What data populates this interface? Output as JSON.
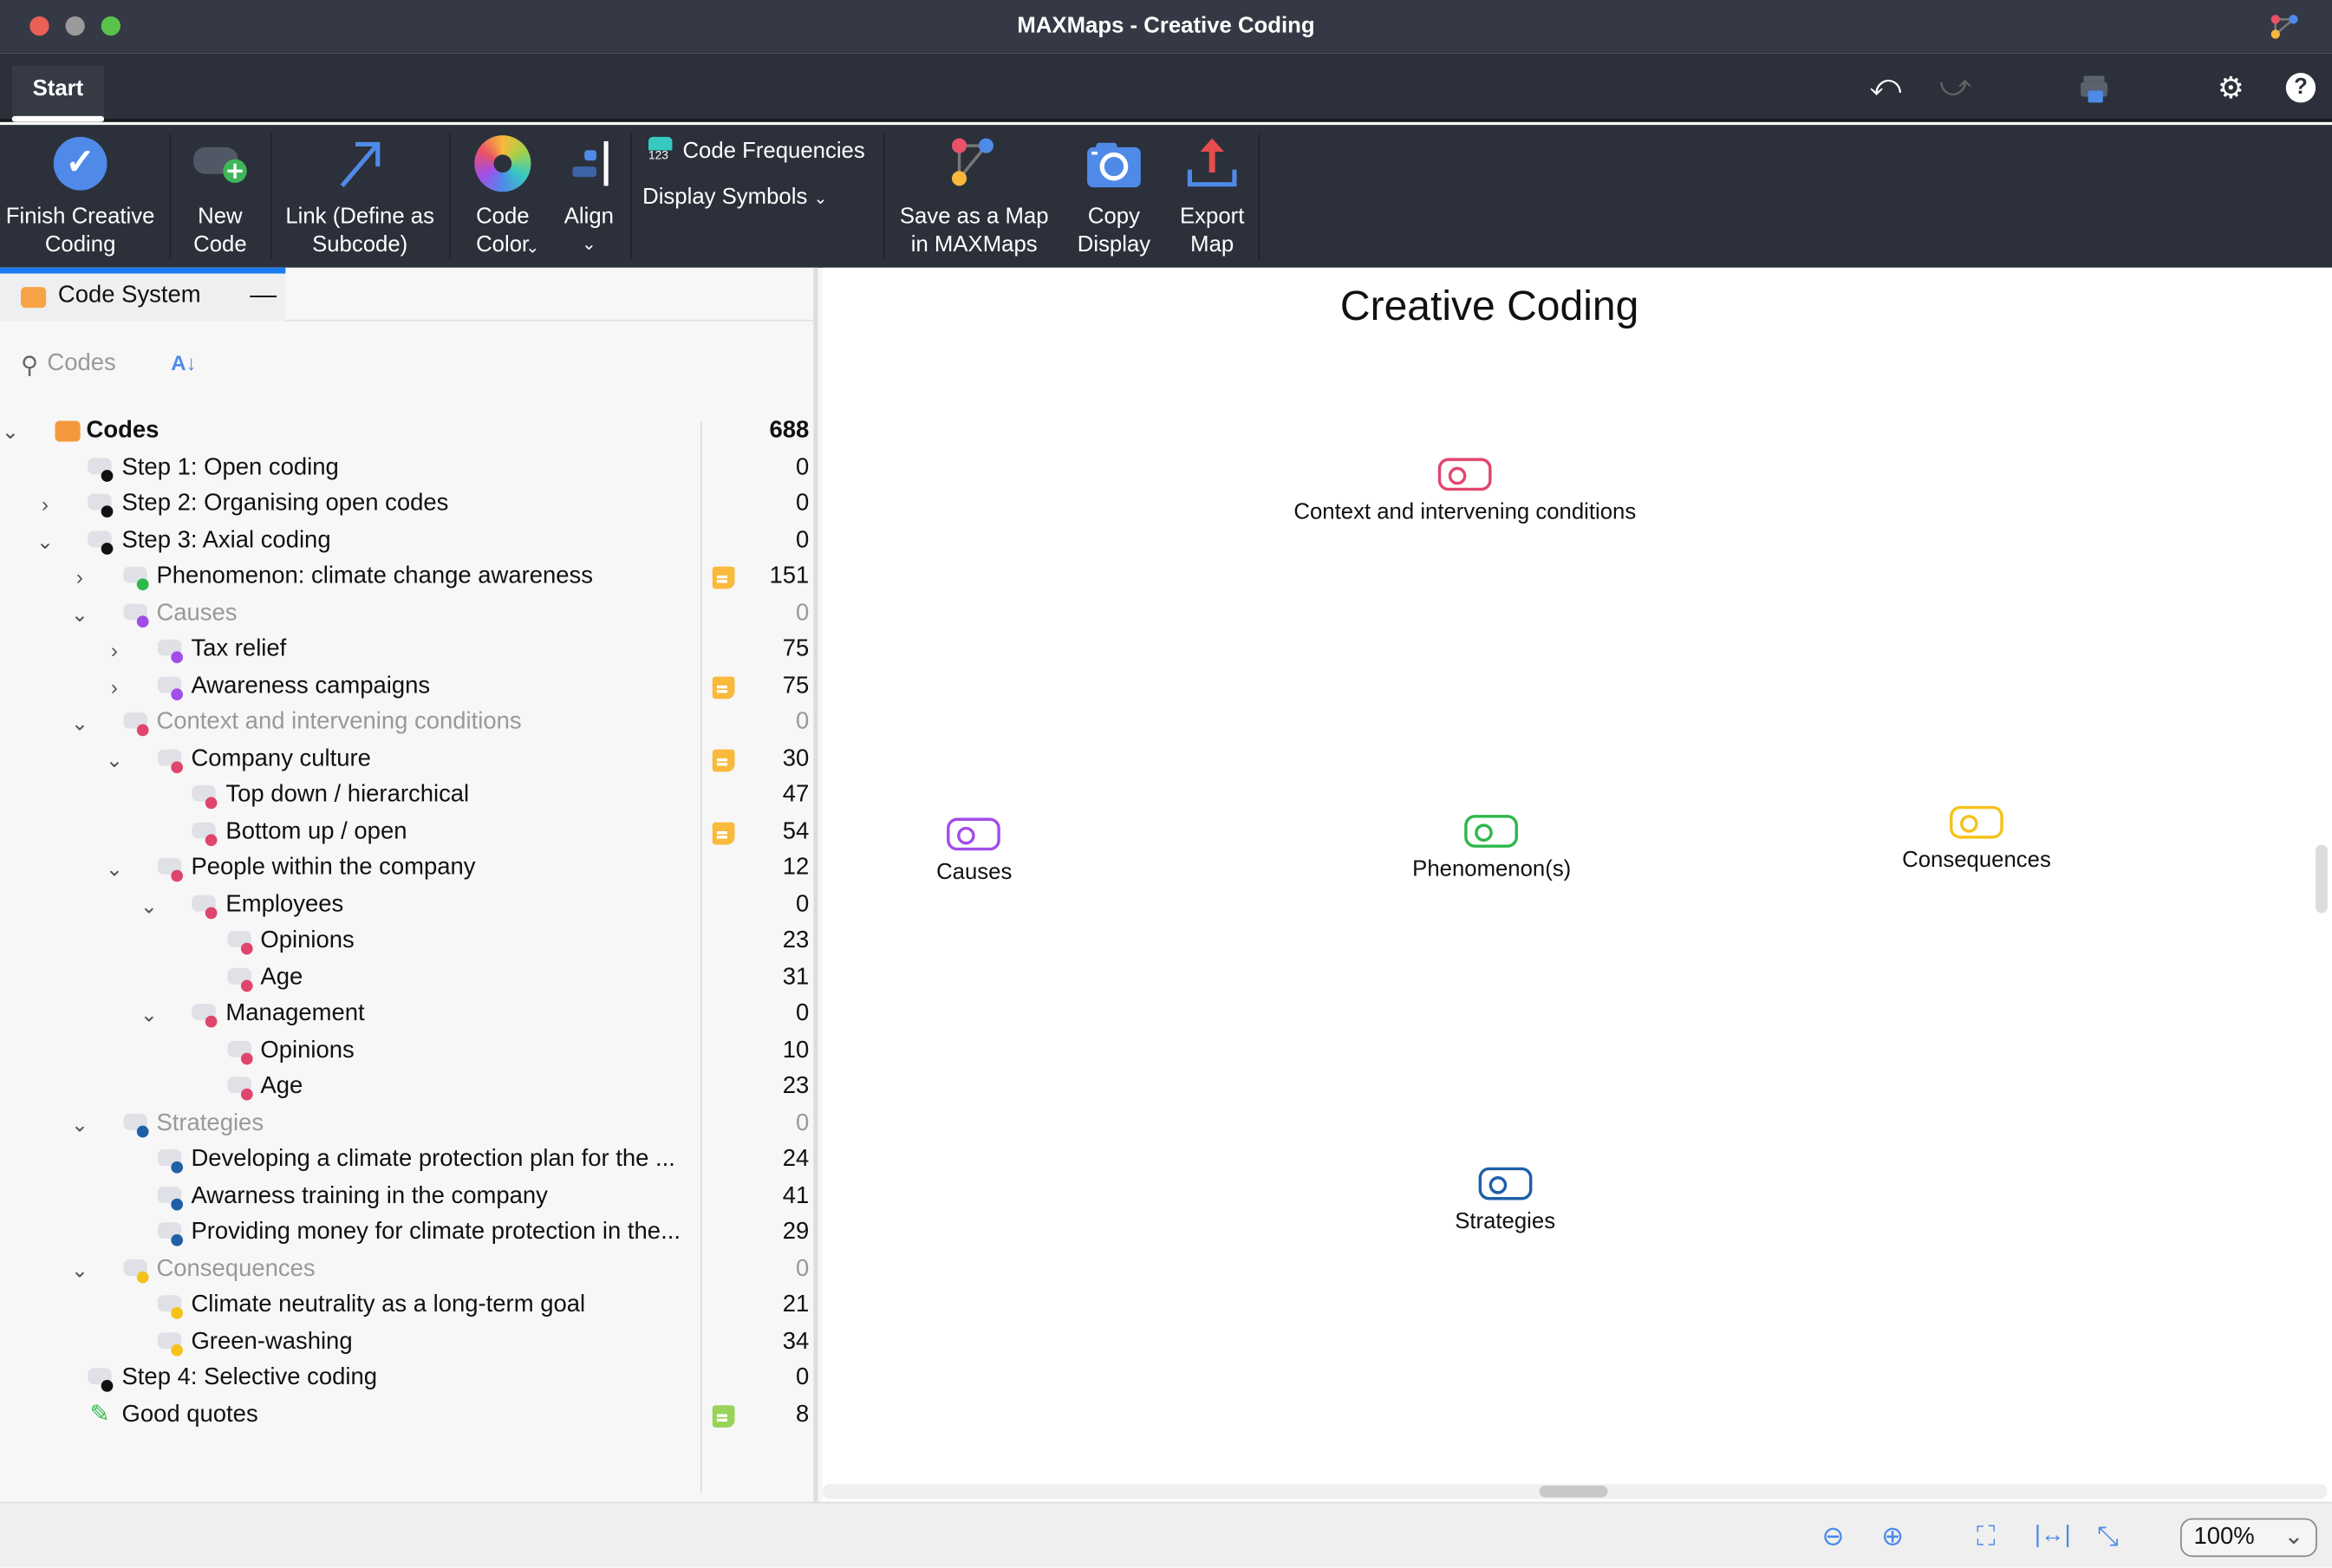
{
  "window": {
    "title": "MAXMaps - Creative Coding"
  },
  "tabs": {
    "start": "Start"
  },
  "ribbon": {
    "finish": "Finish Creative Coding",
    "new_code": "New Code",
    "link": "Link (Define as Subcode)",
    "code_color": "Code Color",
    "align": "Align",
    "code_freq": "Code Frequencies",
    "display_symbols": "Display Symbols",
    "save_map": "Save as a Map in MAXMaps",
    "copy_display": "Copy Display",
    "export_map": "Export Map"
  },
  "code_system": {
    "title": "Code System",
    "search_placeholder": "Codes",
    "rows": [
      {
        "label": "Codes",
        "level": 0,
        "expand": "open",
        "color": "#f59a3c",
        "count": "688",
        "root": true
      },
      {
        "label": "Step 1: Open coding",
        "level": 1,
        "expand": null,
        "color": "#111111",
        "count": "0"
      },
      {
        "label": "Step 2: Organising open codes",
        "level": 1,
        "expand": "closed",
        "color": "#111111",
        "count": "0"
      },
      {
        "label": "Step 3: Axial coding",
        "level": 1,
        "expand": "open",
        "color": "#111111",
        "count": "0"
      },
      {
        "label": "Phenomenon: climate change awareness",
        "level": 2,
        "expand": "closed",
        "color": "#2db84b",
        "count": "151",
        "memo": true
      },
      {
        "label": "Causes",
        "level": 2,
        "expand": "open",
        "color": "#a24de8",
        "count": "0",
        "muted": true
      },
      {
        "label": "Tax relief",
        "level": 3,
        "expand": "closed",
        "color": "#a24de8",
        "count": "75"
      },
      {
        "label": "Awareness campaigns",
        "level": 3,
        "expand": "closed",
        "color": "#a24de8",
        "count": "75",
        "memo": true
      },
      {
        "label": "Context and intervening conditions",
        "level": 2,
        "expand": "open",
        "color": "#e0456e",
        "count": "0",
        "muted": true
      },
      {
        "label": "Company culture",
        "level": 3,
        "expand": "open",
        "color": "#e0456e",
        "count": "30",
        "memo": true
      },
      {
        "label": "Top down / hierarchical",
        "level": 4,
        "expand": null,
        "color": "#e0456e",
        "count": "47"
      },
      {
        "label": "Bottom up / open",
        "level": 4,
        "expand": null,
        "color": "#e0456e",
        "count": "54",
        "memo": true
      },
      {
        "label": "People within the company",
        "level": 3,
        "expand": "open",
        "color": "#e0456e",
        "count": "12"
      },
      {
        "label": "Employees",
        "level": 4,
        "expand": "open",
        "color": "#e0456e",
        "count": "0"
      },
      {
        "label": "Opinions",
        "level": 5,
        "expand": null,
        "color": "#e0456e",
        "count": "23"
      },
      {
        "label": "Age",
        "level": 5,
        "expand": null,
        "color": "#e0456e",
        "count": "31"
      },
      {
        "label": "Management",
        "level": 4,
        "expand": "open",
        "color": "#e0456e",
        "count": "0"
      },
      {
        "label": "Opinions",
        "level": 5,
        "expand": null,
        "color": "#e0456e",
        "count": "10"
      },
      {
        "label": "Age",
        "level": 5,
        "expand": null,
        "color": "#e0456e",
        "count": "23"
      },
      {
        "label": "Strategies",
        "level": 2,
        "expand": "open",
        "color": "#1f5fa8",
        "count": "0",
        "muted": true
      },
      {
        "label": "Developing a climate protection plan for the ...",
        "level": 3,
        "expand": null,
        "color": "#1f5fa8",
        "count": "24"
      },
      {
        "label": "Awarness training in the company",
        "level": 3,
        "expand": null,
        "color": "#1f5fa8",
        "count": "41"
      },
      {
        "label": "Providing money for climate protection in the...",
        "level": 3,
        "expand": null,
        "color": "#1f5fa8",
        "count": "29"
      },
      {
        "label": "Consequences",
        "level": 2,
        "expand": "open",
        "color": "#f5c21b",
        "count": "0",
        "muted": true
      },
      {
        "label": "Climate neutrality as a long-term goal",
        "level": 3,
        "expand": null,
        "color": "#f5c21b",
        "count": "21"
      },
      {
        "label": "Green-washing",
        "level": 3,
        "expand": null,
        "color": "#f5c21b",
        "count": "34"
      },
      {
        "label": "Step 4: Selective coding",
        "level": 1,
        "expand": null,
        "color": "#111111",
        "count": "0"
      },
      {
        "label": "Good quotes",
        "level": 1,
        "expand": null,
        "color": "#2db84b",
        "count": "8",
        "memo": true,
        "pen": true
      }
    ]
  },
  "map": {
    "title": "Creative Coding",
    "nodes": [
      {
        "label": "Context and intervening conditions",
        "color": "#e0456e"
      },
      {
        "label": "Causes",
        "color": "#a24de8"
      },
      {
        "label": "Phenomenon(s)",
        "color": "#2db84b"
      },
      {
        "label": "Consequences",
        "color": "#f5c21b"
      },
      {
        "label": "Strategies",
        "color": "#1f5fa8"
      }
    ]
  },
  "status": {
    "zoom": "100%"
  }
}
